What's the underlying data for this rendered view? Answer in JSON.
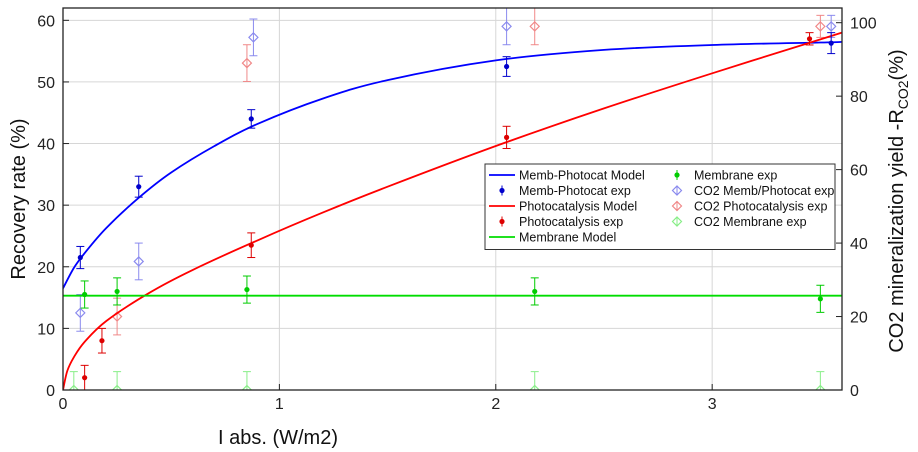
{
  "chart_data": {
    "type": "scatter",
    "xlabel": "I abs. (W/m2)",
    "ylabel_left": "Recovery rate (%)",
    "ylabel_right_main": "CO2 mineralization yield -R",
    "ylabel_right_sub": "CO2",
    "ylabel_right_suffix": "(%)",
    "xlim": [
      0,
      3.6
    ],
    "ylim_left": [
      0,
      62
    ],
    "ylim_right": [
      0,
      104
    ],
    "xticks": [
      0,
      1,
      2,
      3
    ],
    "yticks_left": [
      0,
      10,
      20,
      30,
      40,
      50,
      60
    ],
    "yticks_right": [
      0,
      20,
      40,
      60,
      80,
      100
    ],
    "grid": true,
    "legend_position": "center-right",
    "series": [
      {
        "name": "Memb-Photocat Model",
        "kind": "line",
        "axis": "left",
        "color": "#0000ff",
        "x": [
          0,
          0.05,
          0.1,
          0.2,
          0.35,
          0.5,
          0.7,
          0.9,
          1.2,
          1.5,
          2.0,
          2.5,
          3.0,
          3.5,
          3.6
        ],
        "y": [
          16.5,
          19.8,
          22.2,
          26.3,
          31.2,
          35.3,
          39.6,
          43.2,
          47.3,
          50.3,
          53.5,
          55.2,
          56.0,
          56.4,
          56.5
        ]
      },
      {
        "name": "Photocatalysis Model",
        "kind": "line",
        "axis": "left",
        "color": "#ff0000",
        "x": [
          0,
          0.02,
          0.05,
          0.1,
          0.2,
          0.4,
          0.6,
          0.9,
          1.2,
          1.5,
          2.0,
          2.5,
          3.0,
          3.5,
          3.6
        ],
        "y": [
          0,
          3.1,
          5.3,
          7.8,
          11.2,
          15.8,
          19.5,
          24.3,
          28.8,
          33.0,
          39.6,
          45.7,
          51.4,
          56.9,
          58.0
        ]
      },
      {
        "name": "Membrane Model",
        "kind": "line",
        "axis": "left",
        "color": "#00dd00",
        "x": [
          0,
          3.6
        ],
        "y": [
          15.3,
          15.3
        ]
      },
      {
        "name": "Memb-Photocat exp",
        "kind": "errorbar",
        "axis": "left",
        "color": "#0000cc",
        "marker": "dot",
        "x": [
          0.08,
          0.35,
          0.87,
          2.05,
          3.55
        ],
        "y": [
          21.5,
          33.0,
          44.0,
          52.5,
          56.3
        ],
        "err": [
          1.8,
          1.7,
          1.5,
          1.6,
          1.7
        ]
      },
      {
        "name": "Photocatalysis exp",
        "kind": "errorbar",
        "axis": "left",
        "color": "#dd0000",
        "marker": "dot",
        "x": [
          0.1,
          0.18,
          0.87,
          2.05,
          3.45
        ],
        "y": [
          2.0,
          8.0,
          23.5,
          41.0,
          57.0
        ],
        "err": [
          2.0,
          2.0,
          2.0,
          1.8,
          1.0
        ]
      },
      {
        "name": "Membrane exp",
        "kind": "errorbar",
        "axis": "left",
        "color": "#00cc00",
        "marker": "dot",
        "x": [
          0.1,
          0.25,
          0.85,
          2.18,
          3.5
        ],
        "y": [
          15.5,
          16.0,
          16.3,
          16.0,
          14.8
        ],
        "err": [
          2.2,
          2.2,
          2.2,
          2.2,
          2.2
        ]
      },
      {
        "name": "CO2 Memb/Photocat exp",
        "kind": "errorbar",
        "axis": "right",
        "color": "#8a8aee",
        "marker": "diamond",
        "x": [
          0.08,
          0.35,
          0.88,
          2.05,
          3.55
        ],
        "y": [
          21,
          35,
          96,
          99,
          99
        ],
        "err": [
          5,
          5,
          5,
          5,
          3
        ]
      },
      {
        "name": "CO2 Photocatalysis exp",
        "kind": "errorbar",
        "axis": "right",
        "color": "#f08888",
        "marker": "diamond",
        "x": [
          0.25,
          0.85,
          2.18,
          3.5
        ],
        "y": [
          20,
          89,
          99,
          99
        ],
        "err": [
          5,
          5,
          5,
          3
        ]
      },
      {
        "name": "CO2 Membrane exp",
        "kind": "errorbar",
        "axis": "right",
        "color": "#88ee88",
        "marker": "diamond",
        "x": [
          0.05,
          0.25,
          0.85,
          2.18,
          3.5
        ],
        "y": [
          0,
          0,
          0,
          0,
          0
        ],
        "err": [
          5,
          5,
          5,
          5,
          5
        ]
      }
    ],
    "legend": [
      {
        "label": "Memb-Photocat Model",
        "series": 0,
        "style": "line"
      },
      {
        "label": "Membrane exp",
        "series": 5,
        "style": "errorbar"
      },
      {
        "label": "Memb-Photocat exp",
        "series": 3,
        "style": "errorbar"
      },
      {
        "label": "CO2 Memb/Photocat exp",
        "series": 6,
        "style": "errorbar"
      },
      {
        "label": "Photocatalysis Model",
        "series": 1,
        "style": "line"
      },
      {
        "label": "CO2 Photocatalysis exp",
        "series": 7,
        "style": "errorbar"
      },
      {
        "label": "Photocatalysis exp",
        "series": 4,
        "style": "errorbar"
      },
      {
        "label": "CO2 Membrane exp",
        "series": 8,
        "style": "errorbar"
      },
      {
        "label": "Membrane Model",
        "series": 2,
        "style": "line"
      }
    ]
  }
}
